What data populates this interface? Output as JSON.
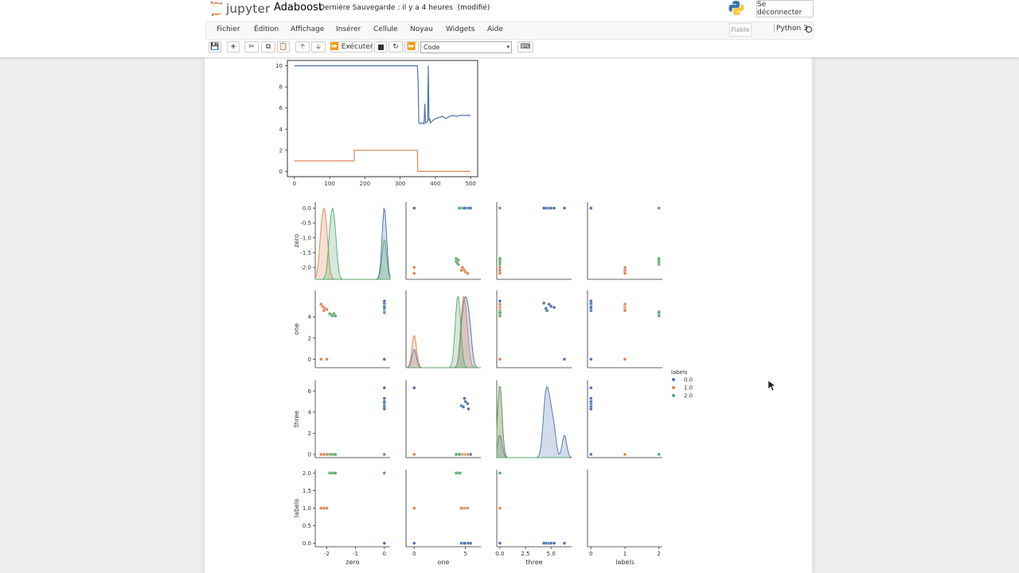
{
  "header": {
    "logo_text": "jupyter",
    "notebook_name": "Adaboost",
    "save_status": "Dernière Sauvegarde : il y a 4 heures",
    "modified": "(modifié)",
    "logout_label": "Se déconnecter"
  },
  "menu": {
    "items": [
      "Fichier",
      "Édition",
      "Affichage",
      "Insérer",
      "Cellule",
      "Noyau",
      "Widgets",
      "Aide"
    ],
    "trusted_label": "Fiable",
    "kernel_name": "Python 3"
  },
  "toolbar": {
    "run_label": "Exécuter",
    "cell_type": "Code"
  },
  "colors": {
    "blue": "#4c72b0",
    "orange": "#dd8452",
    "green": "#55a868"
  },
  "chart_data": [
    {
      "type": "line",
      "x_ticks": [
        "0",
        "100",
        "200",
        "300",
        "400",
        "500"
      ],
      "y_ticks": [
        "0",
        "2",
        "4",
        "6",
        "8",
        "10"
      ],
      "xlim": [
        -20,
        520
      ],
      "ylim": [
        -0.5,
        10.5
      ],
      "series": [
        {
          "color": "#4c72b0",
          "x": [
            0,
            349,
            351,
            353,
            358,
            363,
            368,
            370,
            372,
            375,
            378,
            380,
            382,
            384,
            386,
            389,
            392,
            396,
            400,
            410,
            420,
            430,
            440,
            450,
            460,
            470,
            480,
            490,
            500
          ],
          "y": [
            10,
            10,
            8.5,
            4.6,
            4.5,
            4.6,
            4.5,
            6.4,
            4.6,
            4.6,
            4.8,
            10,
            4.8,
            5.0,
            4.6,
            4.7,
            4.8,
            4.9,
            5.0,
            5.1,
            5.2,
            5.0,
            5.2,
            5.3,
            5.2,
            5.3,
            5.3,
            5.3,
            5.3
          ]
        },
        {
          "color": "#dd8452",
          "x": [
            0,
            170,
            170,
            349,
            350,
            500
          ],
          "y": [
            1,
            1,
            2,
            2,
            0,
            0
          ]
        }
      ]
    },
    {
      "type": "scatter",
      "variables": [
        "zero",
        "one",
        "three",
        "labels"
      ],
      "legend": {
        "title": "labels",
        "entries": [
          "0.0",
          "1.0",
          "2.0"
        ]
      },
      "axes_ticks": {
        "zero": [
          "-2",
          "-1",
          "0"
        ],
        "one": [
          "0",
          "5"
        ],
        "three": [
          "0.0",
          "2.5",
          "5.0"
        ],
        "labels": [
          "0",
          "1",
          "2"
        ]
      },
      "row_ticks": {
        "zero": [
          "0.0",
          "-0.5",
          "-1.0",
          "-1.5",
          "-2.0"
        ],
        "one": [
          "0",
          "2",
          "4"
        ],
        "three": [
          "0",
          "2",
          "4",
          "6"
        ],
        "labels": [
          "0.0",
          "0.5",
          "1.0",
          "1.5",
          "2.0"
        ]
      },
      "ranges": {
        "zero": [
          -2.4,
          0.2
        ],
        "one": [
          -0.8,
          6.5
        ],
        "three": [
          -0.3,
          7.0
        ],
        "labels": [
          -0.1,
          2.1
        ]
      },
      "points": {
        "0.0": [
          {
            "zero": 0,
            "one": 0,
            "three": 6.3
          },
          {
            "zero": 0,
            "one": 5.2,
            "three": 4.8
          },
          {
            "zero": 0,
            "one": 5.0,
            "three": 5.0
          },
          {
            "zero": 0,
            "one": 4.6,
            "three": 4.6
          },
          {
            "zero": 0,
            "one": 4.8,
            "three": 4.5
          },
          {
            "zero": 0,
            "one": 4.9,
            "three": 5.3
          },
          {
            "zero": 0,
            "one": 5.3,
            "three": 4.3
          },
          {
            "zero": 0,
            "one": 5.5,
            "three": 0
          }
        ],
        "1.0": [
          {
            "zero": -2.2,
            "one": 5.2,
            "three": 0
          },
          {
            "zero": -2.15,
            "one": 5.0,
            "three": 0
          },
          {
            "zero": -2.1,
            "one": 4.9,
            "three": 0
          },
          {
            "zero": -2.05,
            "one": 4.8,
            "three": 0
          },
          {
            "zero": -2.0,
            "one": 4.7,
            "three": 0
          },
          {
            "zero": -2.1,
            "one": 4.6,
            "three": 0
          },
          {
            "zero": -2.2,
            "one": 0,
            "three": 0
          },
          {
            "zero": -2.0,
            "one": 0,
            "three": 0
          }
        ],
        "2.0": [
          {
            "zero": -1.9,
            "one": 4.3,
            "three": 0
          },
          {
            "zero": -1.85,
            "one": 4.2,
            "three": 0
          },
          {
            "zero": -1.8,
            "one": 4.1,
            "three": 0
          },
          {
            "zero": -1.75,
            "one": 4.3,
            "three": 0
          },
          {
            "zero": -1.7,
            "one": 4.1,
            "three": 0
          },
          {
            "zero": 0,
            "one": 4.5,
            "three": 0
          },
          {
            "zero": 0,
            "one": 4.4,
            "three": 0
          }
        ]
      }
    }
  ]
}
